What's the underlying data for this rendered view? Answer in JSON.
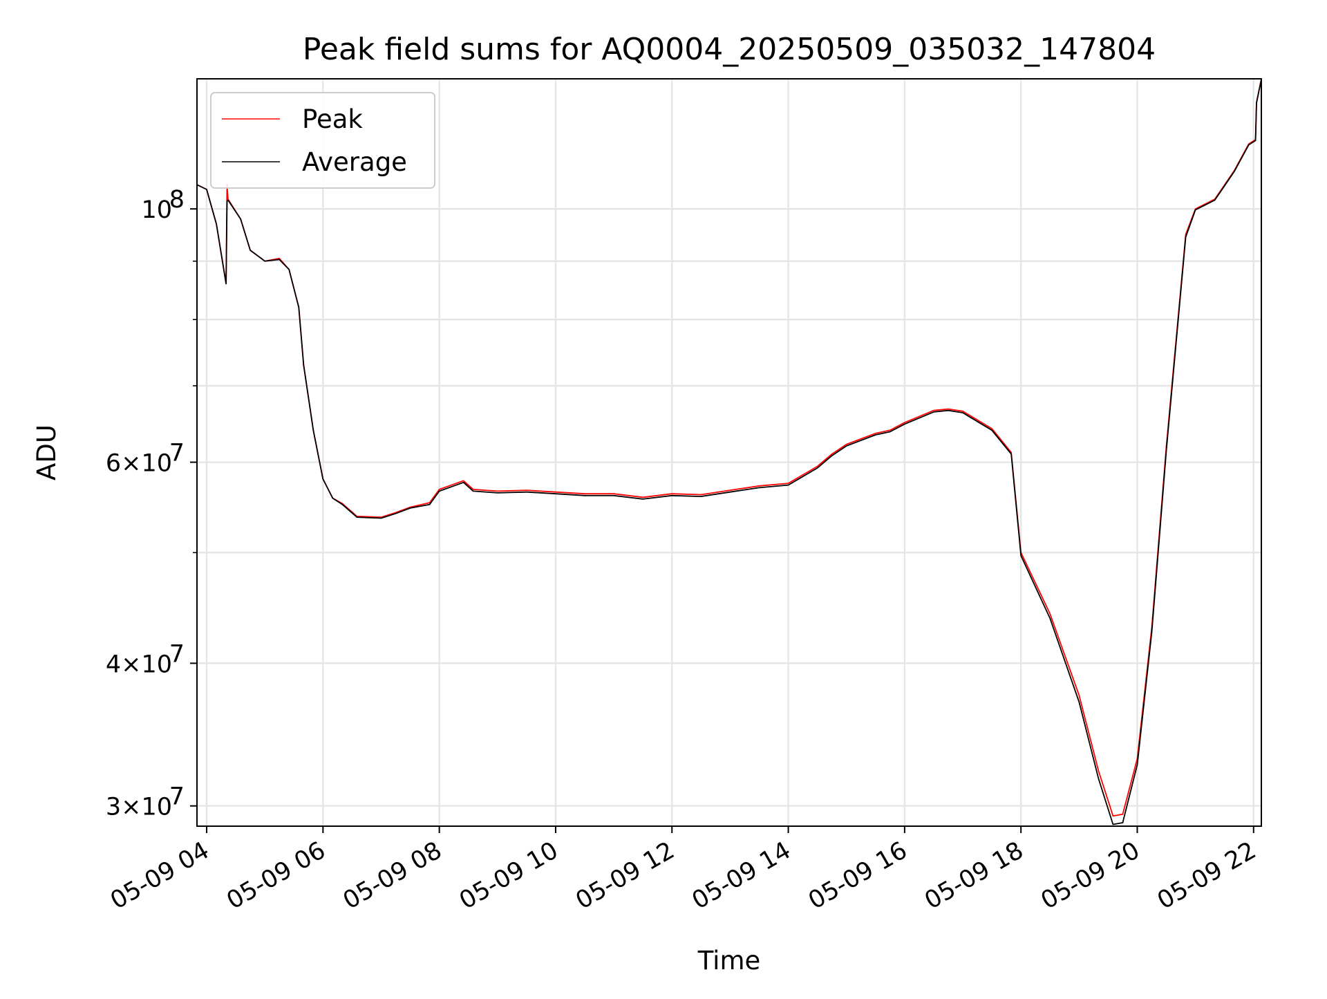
{
  "chart_data": {
    "type": "line",
    "title": "Peak field sums for AQ0004_20250509_035032_147804",
    "xlabel": "Time",
    "ylabel": "ADU",
    "x_type": "time",
    "xlim": [
      "2025-05-09 03:50",
      "2025-05-09 22:08"
    ],
    "x_ticks": [
      "2025-05-09 04:00",
      "2025-05-09 06:00",
      "2025-05-09 08:00",
      "2025-05-09 10:00",
      "2025-05-09 12:00",
      "2025-05-09 14:00",
      "2025-05-09 16:00",
      "2025-05-09 18:00",
      "2025-05-09 20:00",
      "2025-05-09 22:00"
    ],
    "x_tick_labels": [
      "05-09 04",
      "05-09 06",
      "05-09 08",
      "05-09 10",
      "05-09 12",
      "05-09 14",
      "05-09 16",
      "05-09 18",
      "05-09 20",
      "05-09 22"
    ],
    "y_scale": "log",
    "ylim": [
      28800000,
      130000000
    ],
    "y_major_ticks": [
      30000000,
      40000000,
      60000000,
      100000000
    ],
    "y_minor_ticks": [
      50000000,
      70000000,
      80000000,
      90000000
    ],
    "y_tick_labels": [
      {
        "mantissa": "3",
        "exponent": "7"
      },
      {
        "mantissa": "4",
        "exponent": "7"
      },
      {
        "mantissa": "6",
        "exponent": "7"
      },
      {
        "mantissa": "",
        "exponent": "8"
      }
    ],
    "grid": true,
    "legend_position": "upper-left",
    "series": [
      {
        "name": "Peak",
        "color": "#ff0000",
        "points": [
          [
            "2025-05-09 03:50",
            105000000
          ],
          [
            "2025-05-09 04:00",
            104000000
          ],
          [
            "2025-05-09 04:10",
            97000000
          ],
          [
            "2025-05-09 04:20",
            86000000
          ],
          [
            "2025-05-09 04:21",
            105000000
          ],
          [
            "2025-05-09 04:22",
            102000000
          ],
          [
            "2025-05-09 04:35",
            98000000
          ],
          [
            "2025-05-09 04:45",
            92000000
          ],
          [
            "2025-05-09 05:00",
            90000000
          ],
          [
            "2025-05-09 05:15",
            90500000
          ],
          [
            "2025-05-09 05:25",
            88500000
          ],
          [
            "2025-05-09 05:35",
            82000000
          ],
          [
            "2025-05-09 05:40",
            73000000
          ],
          [
            "2025-05-09 05:50",
            64000000
          ],
          [
            "2025-05-09 06:00",
            58000000
          ],
          [
            "2025-05-09 06:10",
            55800000
          ],
          [
            "2025-05-09 06:20",
            55200000
          ],
          [
            "2025-05-09 06:35",
            53800000
          ],
          [
            "2025-05-09 07:00",
            53700000
          ],
          [
            "2025-05-09 07:15",
            54200000
          ],
          [
            "2025-05-09 07:30",
            54800000
          ],
          [
            "2025-05-09 07:50",
            55300000
          ],
          [
            "2025-05-09 08:00",
            56800000
          ],
          [
            "2025-05-09 08:15",
            57400000
          ],
          [
            "2025-05-09 08:25",
            57800000
          ],
          [
            "2025-05-09 08:35",
            56800000
          ],
          [
            "2025-05-09 09:00",
            56600000
          ],
          [
            "2025-05-09 09:30",
            56700000
          ],
          [
            "2025-05-09 10:00",
            56500000
          ],
          [
            "2025-05-09 10:30",
            56300000
          ],
          [
            "2025-05-09 11:00",
            56300000
          ],
          [
            "2025-05-09 11:30",
            55900000
          ],
          [
            "2025-05-09 12:00",
            56300000
          ],
          [
            "2025-05-09 12:30",
            56200000
          ],
          [
            "2025-05-09 13:00",
            56700000
          ],
          [
            "2025-05-09 13:30",
            57200000
          ],
          [
            "2025-05-09 14:00",
            57500000
          ],
          [
            "2025-05-09 14:30",
            59500000
          ],
          [
            "2025-05-09 14:45",
            61000000
          ],
          [
            "2025-05-09 15:00",
            62200000
          ],
          [
            "2025-05-09 15:30",
            63600000
          ],
          [
            "2025-05-09 15:45",
            64000000
          ],
          [
            "2025-05-09 16:00",
            65000000
          ],
          [
            "2025-05-09 16:30",
            66600000
          ],
          [
            "2025-05-09 16:45",
            66800000
          ],
          [
            "2025-05-09 17:00",
            66500000
          ],
          [
            "2025-05-09 17:30",
            64200000
          ],
          [
            "2025-05-09 17:50",
            61200000
          ],
          [
            "2025-05-09 18:00",
            50000000
          ],
          [
            "2025-05-09 18:30",
            44200000
          ],
          [
            "2025-05-09 19:00",
            37500000
          ],
          [
            "2025-05-09 19:20",
            32200000
          ],
          [
            "2025-05-09 19:35",
            29400000
          ],
          [
            "2025-05-09 19:45",
            29500000
          ],
          [
            "2025-05-09 20:00",
            33000000
          ],
          [
            "2025-05-09 20:15",
            43000000
          ],
          [
            "2025-05-09 20:30",
            62000000
          ],
          [
            "2025-05-09 20:50",
            95000000
          ],
          [
            "2025-05-09 21:00",
            100000000
          ],
          [
            "2025-05-09 21:20",
            102000000
          ],
          [
            "2025-05-09 21:40",
            108000000
          ],
          [
            "2025-05-09 21:55",
            114000000
          ],
          [
            "2025-05-09 22:02",
            115000000
          ],
          [
            "2025-05-09 22:03",
            124000000
          ],
          [
            "2025-05-09 22:08",
            130000000
          ]
        ]
      },
      {
        "name": "Average",
        "color": "#000000",
        "points": [
          [
            "2025-05-09 03:50",
            105000000
          ],
          [
            "2025-05-09 04:00",
            104000000
          ],
          [
            "2025-05-09 04:10",
            97000000
          ],
          [
            "2025-05-09 04:20",
            86000000
          ],
          [
            "2025-05-09 04:21",
            101500000
          ],
          [
            "2025-05-09 04:22",
            101800000
          ],
          [
            "2025-05-09 04:35",
            98000000
          ],
          [
            "2025-05-09 04:45",
            92000000
          ],
          [
            "2025-05-09 05:00",
            90000000
          ],
          [
            "2025-05-09 05:15",
            90300000
          ],
          [
            "2025-05-09 05:25",
            88500000
          ],
          [
            "2025-05-09 05:35",
            82000000
          ],
          [
            "2025-05-09 05:40",
            73000000
          ],
          [
            "2025-05-09 05:50",
            64000000
          ],
          [
            "2025-05-09 06:00",
            58000000
          ],
          [
            "2025-05-09 06:10",
            55800000
          ],
          [
            "2025-05-09 06:20",
            55100000
          ],
          [
            "2025-05-09 06:35",
            53700000
          ],
          [
            "2025-05-09 07:00",
            53600000
          ],
          [
            "2025-05-09 07:15",
            54100000
          ],
          [
            "2025-05-09 07:30",
            54700000
          ],
          [
            "2025-05-09 07:50",
            55100000
          ],
          [
            "2025-05-09 08:00",
            56600000
          ],
          [
            "2025-05-09 08:15",
            57200000
          ],
          [
            "2025-05-09 08:25",
            57600000
          ],
          [
            "2025-05-09 08:35",
            56600000
          ],
          [
            "2025-05-09 09:00",
            56400000
          ],
          [
            "2025-05-09 09:30",
            56500000
          ],
          [
            "2025-05-09 10:00",
            56300000
          ],
          [
            "2025-05-09 10:30",
            56100000
          ],
          [
            "2025-05-09 11:00",
            56100000
          ],
          [
            "2025-05-09 11:30",
            55700000
          ],
          [
            "2025-05-09 12:00",
            56100000
          ],
          [
            "2025-05-09 12:30",
            56000000
          ],
          [
            "2025-05-09 13:00",
            56500000
          ],
          [
            "2025-05-09 13:30",
            57000000
          ],
          [
            "2025-05-09 14:00",
            57300000
          ],
          [
            "2025-05-09 14:30",
            59300000
          ],
          [
            "2025-05-09 14:45",
            60800000
          ],
          [
            "2025-05-09 15:00",
            62000000
          ],
          [
            "2025-05-09 15:30",
            63400000
          ],
          [
            "2025-05-09 15:45",
            63800000
          ],
          [
            "2025-05-09 16:00",
            64800000
          ],
          [
            "2025-05-09 16:30",
            66400000
          ],
          [
            "2025-05-09 16:45",
            66600000
          ],
          [
            "2025-05-09 17:00",
            66300000
          ],
          [
            "2025-05-09 17:30",
            64000000
          ],
          [
            "2025-05-09 17:50",
            61000000
          ],
          [
            "2025-05-09 18:00",
            49700000
          ],
          [
            "2025-05-09 18:30",
            43800000
          ],
          [
            "2025-05-09 19:00",
            37000000
          ],
          [
            "2025-05-09 19:20",
            31700000
          ],
          [
            "2025-05-09 19:35",
            28900000
          ],
          [
            "2025-05-09 19:45",
            29000000
          ],
          [
            "2025-05-09 20:00",
            32600000
          ],
          [
            "2025-05-09 20:15",
            42600000
          ],
          [
            "2025-05-09 20:30",
            61500000
          ],
          [
            "2025-05-09 20:50",
            94500000
          ],
          [
            "2025-05-09 21:00",
            99800000
          ],
          [
            "2025-05-09 21:20",
            101800000
          ],
          [
            "2025-05-09 21:40",
            107800000
          ],
          [
            "2025-05-09 21:55",
            113800000
          ],
          [
            "2025-05-09 22:02",
            114800000
          ],
          [
            "2025-05-09 22:03",
            123800000
          ],
          [
            "2025-05-09 22:08",
            129800000
          ]
        ]
      }
    ]
  }
}
